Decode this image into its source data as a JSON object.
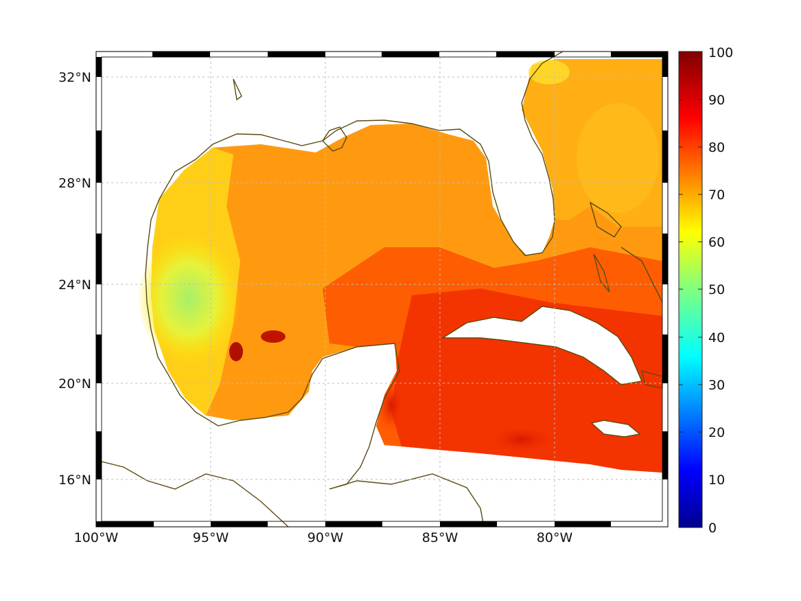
{
  "map": {
    "region": "Gulf of Mexico and Caribbean",
    "longitude_ticks": [
      "100°W",
      "95°W",
      "90°W",
      "85°W",
      "80°W"
    ],
    "latitude_ticks": [
      "32°N",
      "28°N",
      "24°N",
      "20°N",
      "16°N"
    ],
    "grid": true,
    "coastline_color": "#5a4a12"
  },
  "colorbar": {
    "colormap": "jet",
    "range": [
      0,
      100
    ],
    "ticks": [
      "100",
      "90",
      "80",
      "70",
      "60",
      "50",
      "40",
      "30",
      "20",
      "10",
      "0"
    ]
  }
}
